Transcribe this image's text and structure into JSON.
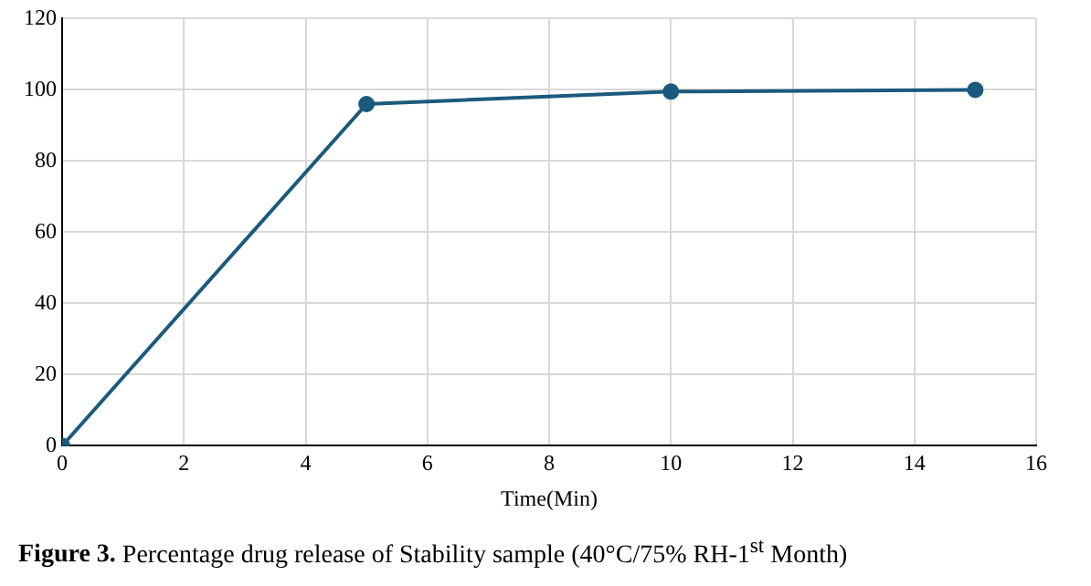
{
  "chart_data": {
    "type": "line",
    "xlabel": "Time(Min)",
    "x": [
      0,
      5,
      10,
      15
    ],
    "series": [
      {
        "color": "#1c5a7d",
        "values": [
          0,
          96,
          99.5,
          100
        ]
      }
    ],
    "xlim": [
      0,
      16
    ],
    "xticks": [
      0,
      2,
      4,
      6,
      8,
      10,
      12,
      14,
      16
    ],
    "ylim": [
      0,
      120
    ],
    "yticks": [
      0,
      20,
      40,
      60,
      80,
      100,
      120
    ],
    "grid": true,
    "legend": false,
    "marker": "circle",
    "line_style": "solid",
    "annotations": [
      "Figure 3.",
      "Percentage drug release of Stability sample (40°C/75% RH-1$^{st}$ Month)"
    ]
  }
}
